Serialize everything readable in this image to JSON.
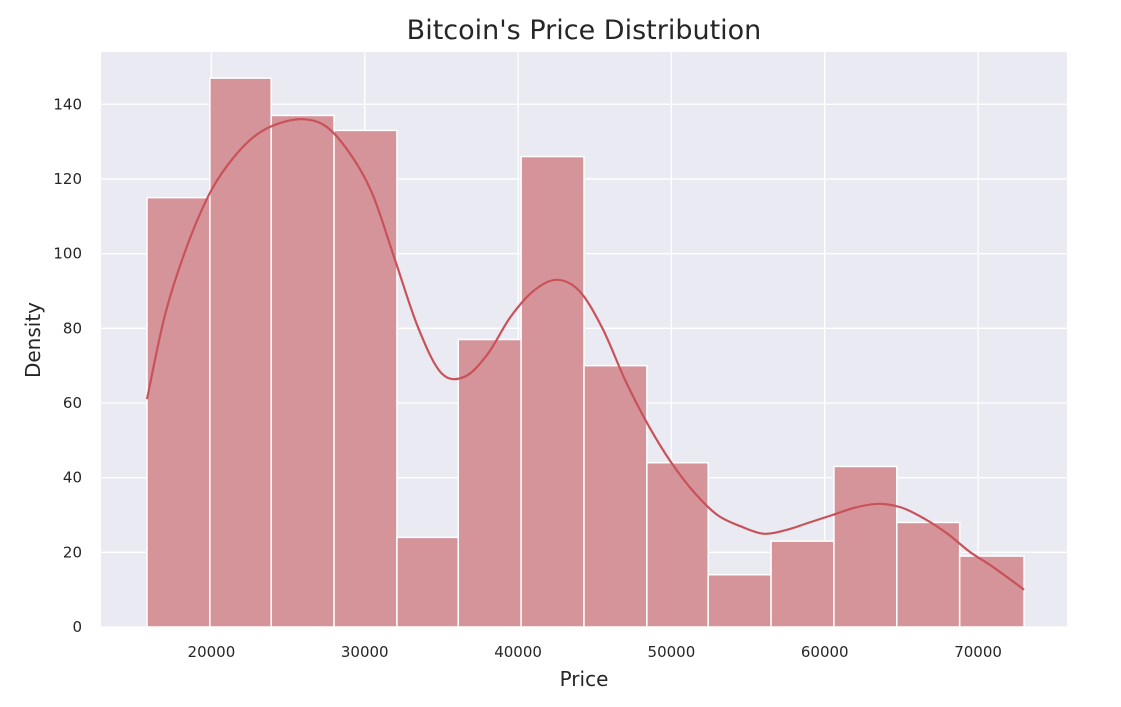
{
  "chart_data": {
    "type": "bar",
    "subtype": "histogram-with-kde",
    "title": "Bitcoin's Price Distribution",
    "xlabel": "Price",
    "ylabel": "Density",
    "xlim": [
      12800,
      75800
    ],
    "ylim": [
      0,
      154
    ],
    "xticks": [
      20000,
      30000,
      40000,
      50000,
      60000,
      70000
    ],
    "yticks": [
      0,
      20,
      40,
      60,
      80,
      100,
      120,
      140
    ],
    "grid": true,
    "legend": "none",
    "bin_edges": [
      15800,
      19900,
      23900,
      28000,
      32100,
      36100,
      40200,
      44300,
      48400,
      52400,
      56500,
      60600,
      64700,
      68800,
      73000
    ],
    "values": [
      115,
      147,
      137,
      133,
      24,
      77,
      126,
      70,
      44,
      14,
      23,
      43,
      28,
      19
    ],
    "kde": {
      "x": [
        15800,
        17000,
        18500,
        20000,
        21500,
        23000,
        24500,
        26000,
        27500,
        29000,
        30500,
        32000,
        33500,
        35000,
        36500,
        38000,
        39500,
        41000,
        42500,
        44000,
        45500,
        47000,
        48500,
        50000,
        51500,
        53000,
        54500,
        56000,
        57500,
        59000,
        60500,
        62000,
        63500,
        65000,
        66500,
        68000,
        69500,
        71000,
        73000
      ],
      "y": [
        61,
        84,
        103,
        117,
        126,
        132,
        135,
        136,
        134,
        127,
        116,
        98,
        80,
        68,
        67,
        73,
        83,
        90,
        93,
        90,
        80,
        66,
        54,
        44,
        36,
        30,
        27,
        25,
        26,
        28,
        30,
        32,
        33,
        32,
        29,
        25,
        20,
        16,
        10
      ]
    },
    "colors": {
      "bar_fill": "#d4949a",
      "bar_edge": "#ffffff",
      "kde_line": "#c9525a",
      "plot_background": "#eaeaf2",
      "grid": "#ffffff"
    }
  }
}
